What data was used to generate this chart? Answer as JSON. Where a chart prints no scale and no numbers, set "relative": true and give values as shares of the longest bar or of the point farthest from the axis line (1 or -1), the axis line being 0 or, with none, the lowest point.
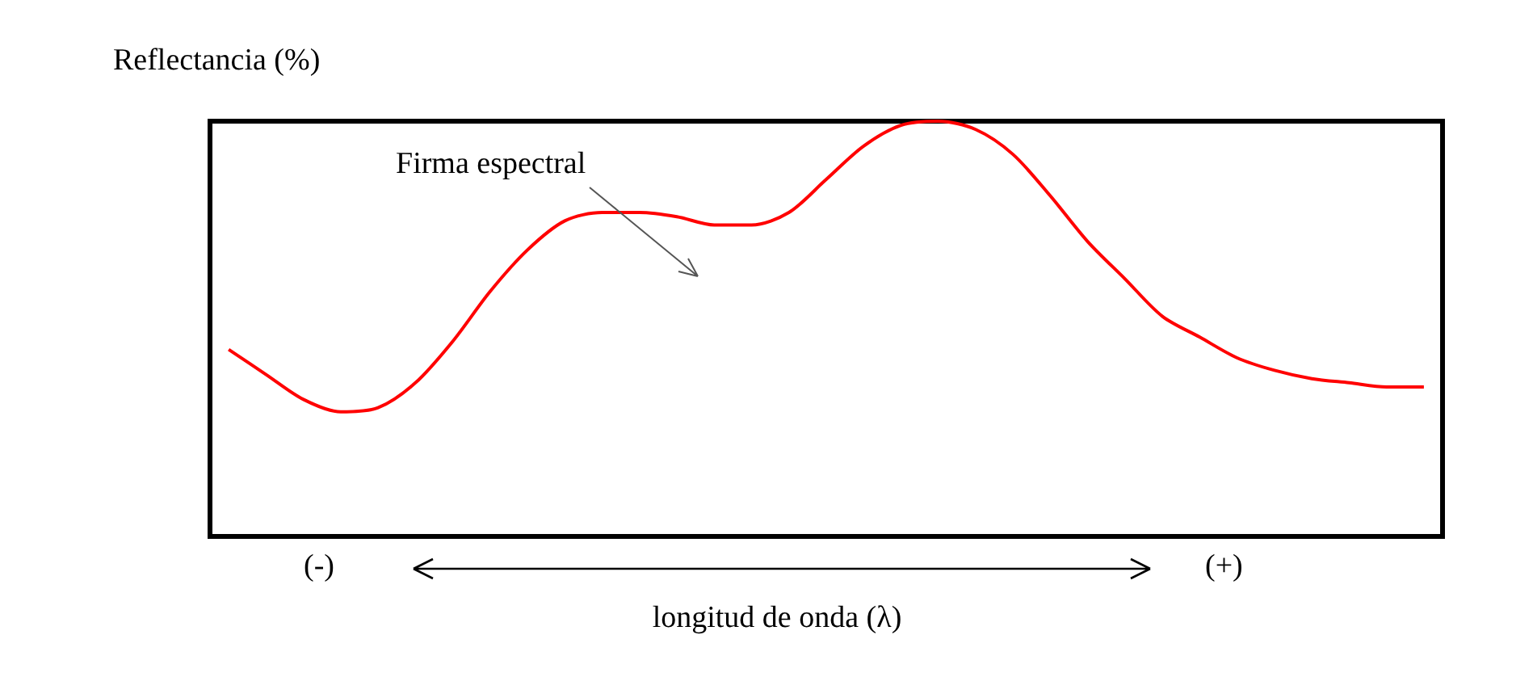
{
  "chart_data": {
    "type": "line",
    "relative": true,
    "ylabel": "Reflectancia (%)",
    "xlabel": "longitud de onda (λ)",
    "annotations": [
      "Firma espectral",
      "(-)",
      "(+)"
    ],
    "categories": [
      null,
      null,
      null,
      null,
      null,
      null,
      null,
      null,
      null,
      null,
      null,
      null,
      null,
      null,
      null,
      null,
      null,
      null,
      null,
      null,
      null,
      null,
      null,
      null,
      null,
      null,
      null,
      null,
      null,
      null,
      null,
      null,
      null
    ],
    "series": [
      {
        "color": "#ff0000",
        "values": [
          0.45,
          0.39,
          0.33,
          0.3,
          0.31,
          0.37,
          0.47,
          0.59,
          0.69,
          0.76,
          0.78,
          0.78,
          0.77,
          0.75,
          0.75,
          0.78,
          0.86,
          0.94,
          0.99,
          1,
          0.98,
          0.92,
          0.82,
          0.71,
          0.62,
          0.53,
          0.48,
          0.43,
          0.4,
          0.38,
          0.37,
          0.36,
          0.36
        ]
      }
    ]
  }
}
